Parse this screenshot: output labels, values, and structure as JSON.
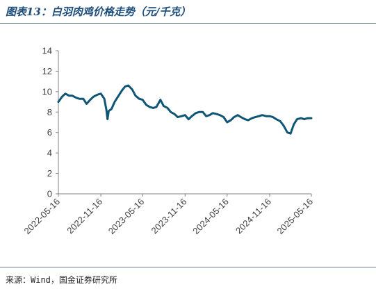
{
  "figure": {
    "title": "图表13：白羽肉鸡价格走势（元/千克）",
    "source": "来源：Wind，国金证券研究所"
  },
  "colors": {
    "line": "#0f5576",
    "title": "#1b4c7a",
    "axis": "#808080"
  },
  "chart_data": {
    "type": "line",
    "title": "白羽肉鸡价格走势（元/千克）",
    "xlabel": "",
    "ylabel": "",
    "ylim": [
      0,
      14
    ],
    "yticks": [
      0,
      2,
      4,
      6,
      8,
      10,
      12,
      14
    ],
    "grid": false,
    "legend": "none",
    "x_tick_labels": [
      "2022-05-16",
      "2022-11-16",
      "2023-05-16",
      "2023-11-16",
      "2024-05-16",
      "2024-11-16",
      "2025-05-16"
    ],
    "series": [
      {
        "x": [
          "2022-05-16",
          "2022-06-01",
          "2022-06-15",
          "2022-07-01",
          "2022-07-15",
          "2022-08-01",
          "2022-08-15",
          "2022-09-01",
          "2022-09-15",
          "2022-10-01",
          "2022-10-15",
          "2022-11-01",
          "2022-11-16",
          "2022-12-01",
          "2022-12-10",
          "2022-12-15",
          "2022-12-20",
          "2023-01-01",
          "2023-01-15",
          "2023-02-01",
          "2023-02-15",
          "2023-03-01",
          "2023-03-15",
          "2023-04-01",
          "2023-04-15",
          "2023-05-01",
          "2023-05-16",
          "2023-06-01",
          "2023-06-15",
          "2023-07-01",
          "2023-07-15",
          "2023-08-01",
          "2023-08-15",
          "2023-09-01",
          "2023-09-15",
          "2023-10-01",
          "2023-10-15",
          "2023-11-01",
          "2023-11-16",
          "2023-12-01",
          "2023-12-15",
          "2024-01-01",
          "2024-01-15",
          "2024-02-01",
          "2024-02-15",
          "2024-03-01",
          "2024-03-15",
          "2024-04-01",
          "2024-04-15",
          "2024-05-01",
          "2024-05-16",
          "2024-06-01",
          "2024-06-15",
          "2024-07-01",
          "2024-07-15",
          "2024-08-01",
          "2024-08-15",
          "2024-09-01",
          "2024-09-15",
          "2024-10-01",
          "2024-10-15",
          "2024-11-01",
          "2024-11-16",
          "2024-12-01",
          "2024-12-15",
          "2025-01-01",
          "2025-01-15",
          "2025-02-01",
          "2025-02-15",
          "2025-03-01",
          "2025-03-15",
          "2025-04-01",
          "2025-04-15",
          "2025-05-01",
          "2025-05-16"
        ],
        "values": [
          9.0,
          9.5,
          9.8,
          9.6,
          9.6,
          9.4,
          9.3,
          9.3,
          8.8,
          9.2,
          9.5,
          9.7,
          9.8,
          9.3,
          8.2,
          7.3,
          8.1,
          8.3,
          9.0,
          9.6,
          10.1,
          10.5,
          10.6,
          10.2,
          9.6,
          9.3,
          9.2,
          8.7,
          8.5,
          8.4,
          8.5,
          9.2,
          8.6,
          8.4,
          8.0,
          7.8,
          7.5,
          7.6,
          7.7,
          7.3,
          7.6,
          7.9,
          8.0,
          8.0,
          7.6,
          7.7,
          7.9,
          7.8,
          7.7,
          7.5,
          7.0,
          7.2,
          7.5,
          7.7,
          7.5,
          7.3,
          7.2,
          7.4,
          7.5,
          7.6,
          7.7,
          7.6,
          7.6,
          7.5,
          7.3,
          7.1,
          6.7,
          6.0,
          5.9,
          6.8,
          7.3,
          7.4,
          7.3,
          7.4,
          7.4
        ]
      }
    ]
  }
}
